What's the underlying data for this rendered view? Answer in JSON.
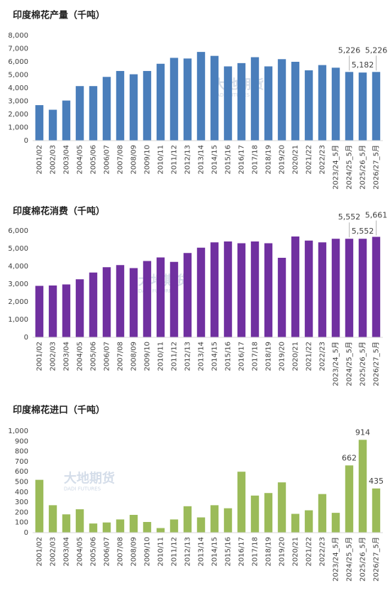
{
  "watermark": {
    "name": "大地期货",
    "sub": "DADI FUTURES"
  },
  "chart_data": [
    {
      "type": "bar",
      "title": "印度棉花产量（千吨）",
      "color": "#4a7ebb",
      "categories": [
        "2001/02",
        "2002/03",
        "2003/04",
        "2004/05",
        "2005/06",
        "2006/07",
        "2007/08",
        "2008/09",
        "2009/10",
        "2010/11",
        "2011/12",
        "2012/13",
        "2013/14",
        "2014/15",
        "2015/16",
        "2016/17",
        "2017/18",
        "2018/19",
        "2019/20",
        "2020/21",
        "2021/22",
        "2022/23",
        "2023/24_5月",
        "2024/25_5月",
        "2025/26_5月",
        "2026/27_5月"
      ],
      "values": [
        2700,
        2350,
        3050,
        4150,
        4150,
        4850,
        5300,
        5050,
        5300,
        5850,
        6300,
        6250,
        6750,
        6450,
        5650,
        5900,
        6350,
        5650,
        6200,
        6000,
        5350,
        5750,
        5550,
        5226,
        5182,
        5226
      ],
      "value_labels": [
        null,
        null,
        null,
        null,
        null,
        null,
        null,
        null,
        null,
        null,
        null,
        null,
        null,
        null,
        null,
        null,
        null,
        null,
        null,
        null,
        null,
        null,
        null,
        "5,226",
        "5,182",
        "5,226"
      ],
      "ylim": [
        0,
        8000
      ],
      "yticks": [
        0,
        {
          "value": 1000,
          "label": "1,000"
        },
        {
          "value": 2000,
          "label": "2,000"
        },
        {
          "value": 3000,
          "label": "3,000"
        },
        {
          "value": 4000,
          "label": "4,000"
        },
        {
          "value": 5000,
          "label": "5,000"
        },
        {
          "value": 6000,
          "label": "6,000"
        },
        {
          "value": 7000,
          "label": "7,000"
        },
        {
          "value": 8000,
          "label": "8,000"
        }
      ]
    },
    {
      "type": "bar",
      "title": "印度棉花消费（千吨）",
      "color": "#7030a0",
      "categories": [
        "2001/02",
        "2002/03",
        "2003/04",
        "2004/05",
        "2005/06",
        "2006/07",
        "2007/08",
        "2008/09",
        "2009/10",
        "2010/11",
        "2011/12",
        "2012/13",
        "2013/14",
        "2014/15",
        "2015/16",
        "2016/17",
        "2017/18",
        "2018/19",
        "2019/20",
        "2020/21",
        "2021/22",
        "2022/23",
        "2023/24_5月",
        "2024/25_5月",
        "2025/26_5月",
        "2026/27_5月"
      ],
      "values": [
        2900,
        2920,
        2980,
        3270,
        3650,
        3950,
        4070,
        3900,
        4300,
        4500,
        4250,
        4750,
        5050,
        5350,
        5400,
        5300,
        5400,
        5300,
        4480,
        5680,
        5450,
        5350,
        5552,
        5552,
        5552,
        5661
      ],
      "value_labels": [
        null,
        null,
        null,
        null,
        null,
        null,
        null,
        null,
        null,
        null,
        null,
        null,
        null,
        null,
        null,
        null,
        null,
        null,
        null,
        null,
        null,
        null,
        null,
        "5,552",
        "5,552",
        "5,661"
      ],
      "ylim": [
        0,
        6000
      ],
      "yticks": [
        0,
        {
          "value": 1000,
          "label": "1,000"
        },
        {
          "value": 2000,
          "label": "2,000"
        },
        {
          "value": 3000,
          "label": "3,000"
        },
        {
          "value": 4000,
          "label": "4,000"
        },
        {
          "value": 5000,
          "label": "5,000"
        },
        {
          "value": 6000,
          "label": "6,000"
        }
      ]
    },
    {
      "type": "bar",
      "title": "印度棉花进口（千吨）",
      "color": "#9bbb59",
      "categories": [
        "2001/02",
        "2002/03",
        "2003/04",
        "2004/05",
        "2005/06",
        "2006/07",
        "2007/08",
        "2008/09",
        "2009/10",
        "2010/11",
        "2011/12",
        "2012/13",
        "2013/14",
        "2014/15",
        "2015/16",
        "2016/17",
        "2017/18",
        "2018/19",
        "2019/20",
        "2020/21",
        "2021/22",
        "2022/23",
        "2023/24_5月",
        "2024/25_5月",
        "2025/26_5月",
        "2026/27_5月"
      ],
      "values": [
        520,
        270,
        180,
        230,
        90,
        100,
        130,
        175,
        105,
        45,
        130,
        260,
        150,
        270,
        240,
        600,
        365,
        390,
        495,
        185,
        220,
        380,
        195,
        662,
        914,
        435
      ],
      "value_labels": [
        null,
        null,
        null,
        null,
        null,
        null,
        null,
        null,
        null,
        null,
        null,
        null,
        null,
        null,
        null,
        null,
        null,
        null,
        null,
        null,
        null,
        null,
        null,
        "662",
        "914",
        "435"
      ],
      "ylim": [
        0,
        1000
      ],
      "yticks": [
        0,
        100,
        200,
        300,
        400,
        500,
        600,
        700,
        800,
        900,
        {
          "value": 1000,
          "label": "1,000"
        }
      ]
    }
  ]
}
